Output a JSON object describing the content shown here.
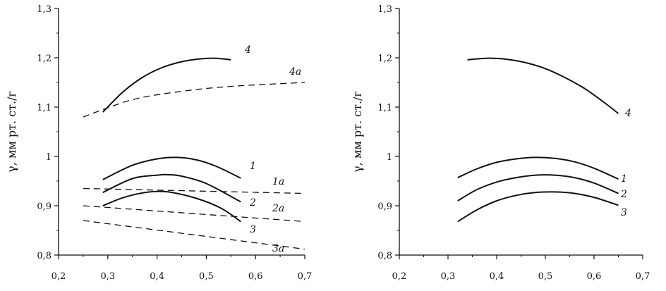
{
  "chart_data": [
    {
      "type": "line",
      "ylabel": "γ, мм рт. ст./г",
      "xlim": [
        0.2,
        0.7
      ],
      "ylim": [
        0.8,
        1.3
      ],
      "x_ticks": [
        "0,2",
        "0,3",
        "0,4",
        "0,5",
        "0,6",
        "0,7"
      ],
      "y_ticks": [
        "0,8",
        "0,9",
        "1",
        "1,1",
        "1,2",
        "1,3"
      ],
      "grid": false,
      "series": [
        {
          "name": "4",
          "style": "solid",
          "x": [
            0.29,
            0.33,
            0.37,
            0.41,
            0.45,
            0.49,
            0.52,
            0.55
          ],
          "y": [
            1.09,
            1.13,
            1.16,
            1.18,
            1.192,
            1.198,
            1.199,
            1.196
          ]
        },
        {
          "name": "4a",
          "style": "dashed",
          "x": [
            0.25,
            0.35,
            0.45,
            0.55,
            0.7
          ],
          "y": [
            1.08,
            1.115,
            1.132,
            1.142,
            1.15
          ]
        },
        {
          "name": "1",
          "style": "solid",
          "x": [
            0.29,
            0.35,
            0.4,
            0.44,
            0.48,
            0.52,
            0.57
          ],
          "y": [
            0.953,
            0.982,
            0.995,
            0.998,
            0.993,
            0.98,
            0.956
          ]
        },
        {
          "name": "2",
          "style": "solid",
          "x": [
            0.29,
            0.35,
            0.4,
            0.42,
            0.45,
            0.5,
            0.57
          ],
          "y": [
            0.927,
            0.955,
            0.962,
            0.963,
            0.96,
            0.945,
            0.908
          ]
        },
        {
          "name": "3",
          "style": "solid",
          "x": [
            0.29,
            0.33,
            0.37,
            0.4,
            0.43,
            0.48,
            0.53,
            0.57
          ],
          "y": [
            0.9,
            0.916,
            0.926,
            0.929,
            0.927,
            0.915,
            0.895,
            0.868
          ]
        },
        {
          "name": "1a",
          "style": "dashed",
          "x": [
            0.25,
            0.7
          ],
          "y": [
            0.935,
            0.925
          ]
        },
        {
          "name": "2a",
          "style": "dashed",
          "x": [
            0.25,
            0.7
          ],
          "y": [
            0.9,
            0.868
          ]
        },
        {
          "name": "3a",
          "style": "dashed",
          "x": [
            0.25,
            0.7
          ],
          "y": [
            0.87,
            0.812
          ]
        }
      ]
    },
    {
      "type": "line",
      "ylabel": "γ, мм рт. ст./г",
      "xlim": [
        0.2,
        0.7
      ],
      "ylim": [
        0.8,
        1.3
      ],
      "x_ticks": [
        "0,2",
        "0,3",
        "0,4",
        "0,5",
        "0,6",
        "0,7"
      ],
      "y_ticks": [
        "0,8",
        "0,9",
        "1",
        "1,1",
        "1,2",
        "1,3"
      ],
      "grid": false,
      "series": [
        {
          "name": "4",
          "style": "solid",
          "x": [
            0.34,
            0.38,
            0.42,
            0.46,
            0.5,
            0.54,
            0.58,
            0.62,
            0.65
          ],
          "y": [
            1.196,
            1.199,
            1.197,
            1.19,
            1.178,
            1.16,
            1.138,
            1.11,
            1.087
          ]
        },
        {
          "name": "1",
          "style": "solid",
          "x": [
            0.32,
            0.36,
            0.4,
            0.44,
            0.48,
            0.52,
            0.56,
            0.6,
            0.65
          ],
          "y": [
            0.957,
            0.975,
            0.988,
            0.995,
            0.998,
            0.996,
            0.989,
            0.976,
            0.954
          ]
        },
        {
          "name": "2",
          "style": "solid",
          "x": [
            0.32,
            0.36,
            0.4,
            0.44,
            0.48,
            0.52,
            0.56,
            0.6,
            0.65
          ],
          "y": [
            0.91,
            0.933,
            0.948,
            0.957,
            0.962,
            0.962,
            0.957,
            0.946,
            0.925
          ]
        },
        {
          "name": "3",
          "style": "solid",
          "x": [
            0.32,
            0.36,
            0.4,
            0.44,
            0.48,
            0.52,
            0.56,
            0.6,
            0.65
          ],
          "y": [
            0.868,
            0.892,
            0.91,
            0.921,
            0.927,
            0.928,
            0.925,
            0.917,
            0.901
          ]
        }
      ]
    }
  ]
}
